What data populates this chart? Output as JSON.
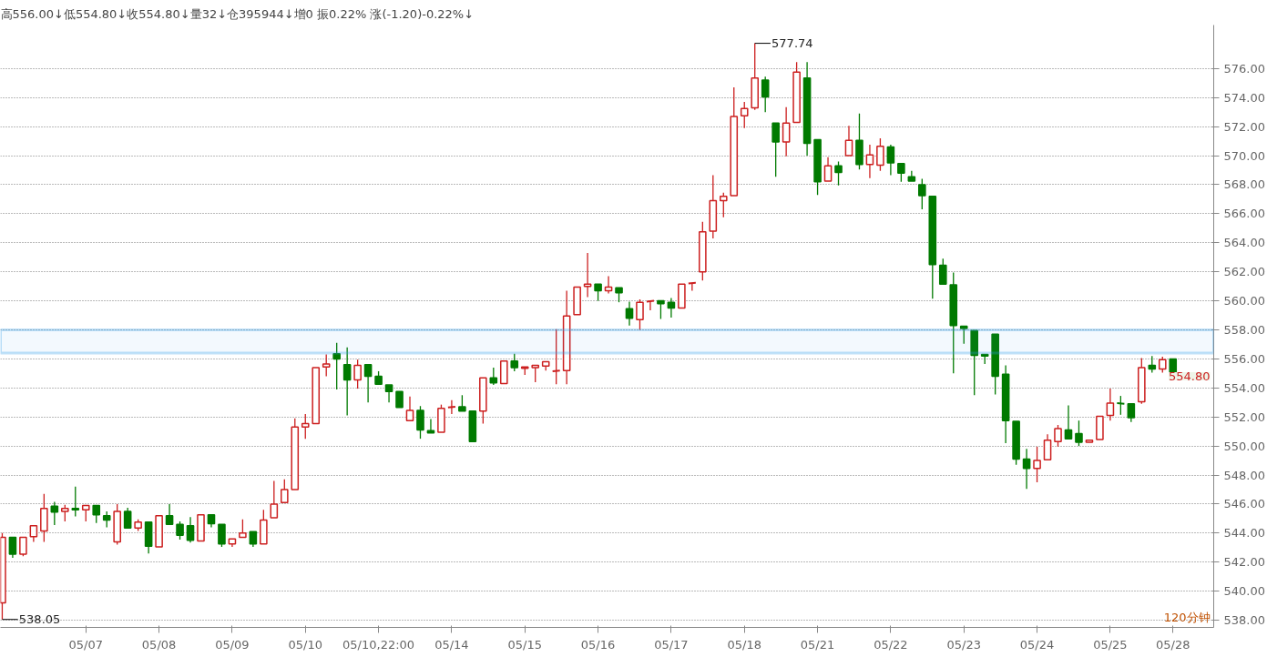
{
  "chart_data": {
    "type": "candlestick",
    "title": "高556.00↓低554.80↓收554.80↓量32↓仓395944↓增0 振0.22% 涨(-1.20)-0.22%↓",
    "categories": [
      null,
      null,
      null,
      null,
      null,
      null,
      null,
      null,
      "05/07",
      null,
      null,
      null,
      null,
      null,
      null,
      "05/08",
      null,
      null,
      null,
      null,
      null,
      null,
      "05/09",
      null,
      null,
      null,
      null,
      null,
      null,
      "05/10",
      null,
      null,
      null,
      null,
      null,
      null,
      "05/10,22:00",
      null,
      null,
      null,
      null,
      null,
      null,
      "05/14",
      null,
      null,
      null,
      null,
      null,
      null,
      "05/15",
      null,
      null,
      null,
      null,
      null,
      null,
      "05/16",
      null,
      null,
      null,
      null,
      null,
      null,
      "05/17",
      null,
      null,
      null,
      null,
      null,
      null,
      "05/18",
      null,
      null,
      null,
      null,
      null,
      null,
      "05/21",
      null,
      null,
      null,
      null,
      null,
      null,
      "05/22",
      null,
      null,
      null,
      null,
      null,
      null,
      "05/23",
      null,
      null,
      null,
      null,
      null,
      null,
      "05/24",
      null,
      null,
      null,
      null,
      null,
      null,
      "05/25",
      null,
      null,
      null,
      null,
      null,
      "05/28"
    ],
    "ohlc": [
      [
        539.2,
        544.0,
        538.05,
        543.7
      ],
      [
        543.7,
        543.8,
        542.3,
        542.55
      ],
      [
        542.55,
        543.8,
        542.4,
        543.7
      ],
      [
        543.75,
        544.6,
        543.4,
        544.5
      ],
      [
        544.15,
        546.7,
        543.4,
        545.7
      ],
      [
        545.85,
        546.15,
        544.55,
        545.45
      ],
      [
        545.5,
        545.95,
        544.8,
        545.7
      ],
      [
        545.7,
        547.2,
        545.15,
        545.6
      ],
      [
        545.6,
        545.9,
        544.8,
        545.9
      ],
      [
        545.9,
        545.9,
        544.7,
        545.25
      ],
      [
        545.2,
        545.5,
        544.4,
        544.9
      ],
      [
        543.4,
        546.0,
        543.2,
        545.5
      ],
      [
        545.5,
        545.75,
        544.35,
        544.35
      ],
      [
        544.35,
        544.95,
        544.15,
        544.75
      ],
      [
        544.75,
        544.8,
        542.6,
        543.1
      ],
      [
        543.05,
        545.3,
        543.0,
        545.2
      ],
      [
        545.2,
        546.0,
        544.5,
        544.6
      ],
      [
        544.6,
        544.8,
        543.55,
        543.85
      ],
      [
        544.5,
        545.1,
        543.35,
        543.5
      ],
      [
        543.45,
        545.3,
        543.45,
        545.25
      ],
      [
        545.25,
        545.3,
        544.4,
        544.65
      ],
      [
        544.6,
        544.6,
        543.05,
        543.25
      ],
      [
        543.25,
        543.65,
        543.05,
        543.6
      ],
      [
        543.7,
        544.95,
        543.7,
        544.0
      ],
      [
        544.1,
        544.15,
        543.05,
        543.25
      ],
      [
        543.25,
        545.6,
        543.25,
        544.9
      ],
      [
        545.05,
        547.6,
        545.0,
        546.0
      ],
      [
        546.1,
        547.7,
        546.0,
        547.0
      ],
      [
        547.0,
        551.9,
        546.9,
        551.3
      ],
      [
        551.3,
        552.2,
        550.5,
        551.55
      ],
      [
        551.55,
        555.45,
        551.5,
        555.4
      ],
      [
        555.45,
        556.3,
        554.8,
        555.65
      ],
      [
        556.35,
        557.1,
        553.9,
        556.0
      ],
      [
        555.6,
        556.8,
        552.1,
        554.55
      ],
      [
        554.55,
        555.95,
        553.95,
        555.55
      ],
      [
        555.6,
        555.65,
        553.0,
        554.8
      ],
      [
        554.8,
        555.15,
        554.25,
        554.25
      ],
      [
        554.2,
        554.2,
        553.0,
        553.75
      ],
      [
        553.75,
        553.8,
        552.65,
        552.65
      ],
      [
        551.75,
        553.4,
        551.75,
        552.45
      ],
      [
        552.45,
        552.75,
        550.5,
        551.1
      ],
      [
        551.05,
        551.85,
        550.9,
        550.9
      ],
      [
        550.95,
        552.85,
        550.95,
        552.6
      ],
      [
        552.65,
        553.15,
        552.2,
        552.7
      ],
      [
        552.7,
        553.5,
        552.3,
        552.4
      ],
      [
        552.4,
        552.5,
        550.3,
        550.3
      ],
      [
        552.4,
        554.75,
        551.55,
        554.7
      ],
      [
        554.7,
        555.4,
        554.2,
        554.35
      ],
      [
        554.3,
        555.85,
        554.2,
        555.85
      ],
      [
        555.85,
        556.35,
        555.15,
        555.4
      ],
      [
        555.35,
        555.45,
        554.9,
        555.45
      ],
      [
        555.4,
        555.65,
        554.4,
        555.55
      ],
      [
        555.5,
        555.85,
        555.2,
        555.8
      ],
      [
        555.15,
        558.05,
        554.25,
        555.2
      ],
      [
        555.2,
        560.7,
        554.25,
        558.95
      ],
      [
        559.05,
        561.0,
        559.05,
        560.95
      ],
      [
        561.0,
        563.3,
        560.25,
        561.15
      ],
      [
        561.15,
        561.25,
        560.0,
        560.7
      ],
      [
        560.7,
        561.7,
        560.5,
        560.95
      ],
      [
        560.9,
        560.95,
        559.9,
        560.55
      ],
      [
        559.45,
        559.95,
        558.3,
        558.8
      ],
      [
        558.7,
        560.1,
        558.0,
        559.9
      ],
      [
        559.95,
        560.1,
        559.35,
        560.0
      ],
      [
        560.0,
        560.0,
        558.75,
        559.8
      ],
      [
        559.9,
        560.2,
        558.85,
        559.5
      ],
      [
        559.5,
        561.15,
        559.4,
        561.15
      ],
      [
        561.2,
        561.35,
        560.7,
        561.25
      ],
      [
        562.0,
        565.45,
        561.4,
        564.75
      ],
      [
        564.8,
        568.65,
        564.3,
        566.9
      ],
      [
        566.9,
        567.45,
        565.75,
        567.2
      ],
      [
        567.25,
        574.7,
        567.25,
        572.7
      ],
      [
        572.75,
        573.7,
        571.9,
        573.25
      ],
      [
        573.3,
        577.74,
        573.15,
        575.35
      ],
      [
        575.2,
        575.45,
        573.0,
        574.05
      ],
      [
        572.25,
        572.25,
        568.55,
        570.95
      ],
      [
        570.95,
        573.35,
        569.95,
        572.25
      ],
      [
        572.3,
        576.45,
        572.3,
        575.75
      ],
      [
        575.35,
        576.45,
        570.0,
        570.85
      ],
      [
        571.1,
        571.1,
        567.3,
        568.2
      ],
      [
        568.25,
        569.9,
        568.25,
        569.3
      ],
      [
        569.3,
        569.6,
        567.95,
        568.85
      ],
      [
        570.0,
        572.05,
        570.0,
        571.05
      ],
      [
        571.05,
        572.9,
        569.05,
        569.4
      ],
      [
        569.4,
        570.75,
        568.45,
        570.05
      ],
      [
        569.35,
        571.2,
        568.95,
        570.65
      ],
      [
        570.6,
        570.75,
        568.65,
        569.5
      ],
      [
        569.45,
        569.45,
        568.2,
        568.8
      ],
      [
        568.55,
        568.95,
        568.2,
        568.25
      ],
      [
        568.0,
        568.4,
        566.3,
        567.25
      ],
      [
        567.2,
        567.2,
        560.15,
        562.5
      ],
      [
        562.45,
        562.9,
        561.1,
        561.15
      ],
      [
        561.1,
        561.95,
        555.0,
        558.3
      ],
      [
        558.25,
        558.3,
        557.05,
        558.1
      ],
      [
        557.95,
        557.95,
        553.5,
        556.25
      ],
      [
        556.3,
        556.3,
        555.65,
        556.2
      ],
      [
        557.7,
        557.7,
        553.55,
        554.8
      ],
      [
        554.95,
        555.55,
        550.2,
        551.75
      ],
      [
        551.7,
        551.7,
        548.7,
        549.1
      ],
      [
        549.1,
        549.8,
        547.05,
        548.45
      ],
      [
        548.45,
        549.95,
        547.5,
        549.0
      ],
      [
        549.05,
        550.8,
        549.05,
        550.4
      ],
      [
        550.3,
        551.45,
        549.95,
        551.2
      ],
      [
        551.1,
        552.8,
        550.4,
        550.5
      ],
      [
        550.85,
        551.75,
        550.0,
        550.25
      ],
      [
        550.25,
        550.4,
        550.15,
        550.4
      ],
      [
        550.45,
        552.1,
        550.45,
        552.05
      ],
      [
        552.1,
        553.95,
        551.75,
        552.95
      ],
      [
        552.95,
        553.45,
        552.15,
        552.9
      ],
      [
        552.9,
        552.95,
        551.65,
        551.95
      ],
      [
        553.05,
        556.05,
        552.9,
        555.4
      ],
      [
        555.55,
        556.2,
        555.05,
        555.3
      ],
      [
        555.3,
        556.15,
        555.05,
        555.95
      ],
      [
        556.0,
        556.0,
        554.8,
        554.8
      ]
    ],
    "ylim": [
      537.5,
      579.0
    ],
    "yticks": [
      {
        "value": 538,
        "label": "538.00"
      },
      {
        "value": 540,
        "label": "540.00"
      },
      {
        "value": 542,
        "label": "542.00"
      },
      {
        "value": 544,
        "label": "544.00"
      },
      {
        "value": 546,
        "label": "546.00"
      },
      {
        "value": 548,
        "label": "548.00"
      },
      {
        "value": 550,
        "label": "550.00"
      },
      {
        "value": 552,
        "label": "552.00"
      },
      {
        "value": 554,
        "label": "554.00"
      },
      {
        "value": 556,
        "label": "556.00"
      },
      {
        "value": 558,
        "label": "558.00"
      },
      {
        "value": 560,
        "label": "560.00"
      },
      {
        "value": 562,
        "label": "562.00"
      },
      {
        "value": 564,
        "label": "564.00"
      },
      {
        "value": 566,
        "label": "566.00"
      },
      {
        "value": 568,
        "label": "568.00"
      },
      {
        "value": 570,
        "label": "570.00"
      },
      {
        "value": 572,
        "label": "572.00"
      },
      {
        "value": 574,
        "label": "574.00"
      },
      {
        "value": 576,
        "label": "576.00"
      }
    ],
    "grid": "y",
    "bands": [
      {
        "axis": "y",
        "from": 556.4,
        "to": 558.0,
        "color": "#2f9be8"
      }
    ],
    "annotations": [
      "577.74",
      "538.05",
      "554.80",
      "120分钟"
    ]
  }
}
